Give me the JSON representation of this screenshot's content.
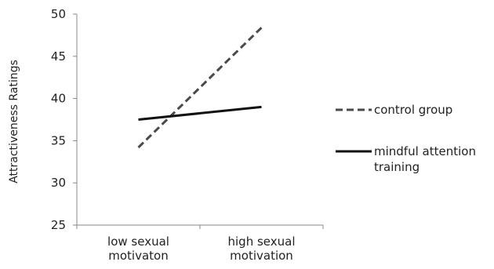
{
  "chart_data": {
    "type": "line",
    "categories": [
      [
        "low sexual",
        "motivaton"
      ],
      [
        "high sexual",
        "motivation"
      ]
    ],
    "ylabel": "Attractiveness Ratings",
    "ylim": [
      25,
      50
    ],
    "yticks": [
      25,
      30,
      35,
      40,
      45,
      50
    ],
    "grid": false,
    "legend_position": "right",
    "series": [
      {
        "name": "control group",
        "values": [
          34.2,
          48.4
        ],
        "style": "dashed",
        "color": "#4a4a4a"
      },
      {
        "name": [
          "mindful attention",
          "training"
        ],
        "values": [
          37.5,
          39.0
        ],
        "style": "solid",
        "color": "#111111"
      }
    ]
  }
}
